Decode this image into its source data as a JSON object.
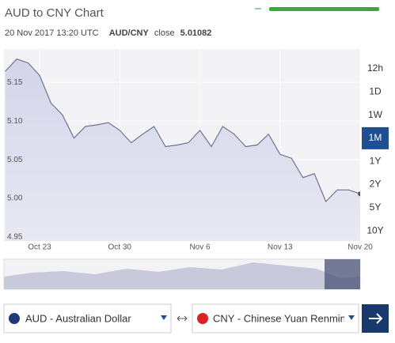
{
  "header": {
    "title": "AUD to CNY Chart",
    "timestamp": "20 Nov 2017 13:20 UTC",
    "pair": "AUD/CNY",
    "close_label": "close",
    "close_value": "5.01082"
  },
  "chart_data": {
    "type": "area",
    "color": "#6f7393",
    "categories": [
      null,
      null,
      null,
      "Oct 23",
      null,
      null,
      null,
      null,
      null,
      null,
      "Oct 30",
      null,
      null,
      null,
      null,
      null,
      null,
      "Nov 6",
      null,
      null,
      null,
      null,
      null,
      null,
      "Nov 13",
      null,
      null,
      null,
      null,
      null,
      null,
      "Nov 20"
    ],
    "values": [
      5.164,
      5.18,
      5.175,
      5.159,
      5.123,
      5.108,
      5.078,
      5.093,
      5.095,
      5.098,
      5.088,
      5.072,
      5.083,
      5.093,
      5.067,
      5.069,
      5.072,
      5.088,
      5.067,
      5.093,
      5.083,
      5.067,
      5.069,
      5.083,
      5.057,
      5.052,
      5.027,
      5.032,
      4.996,
      5.011,
      5.011,
      5.006
    ],
    "ylim": [
      4.945,
      5.193
    ],
    "yticks": [
      4.95,
      {
        "value": 5,
        "label": "5.00"
      },
      5.05,
      {
        "value": 5.1,
        "label": "5.10"
      },
      5.15
    ],
    "grid": true
  },
  "ranges": {
    "options": [
      "12h",
      "1D",
      "1W",
      "1M",
      "1Y",
      "2Y",
      "5Y",
      "10Y"
    ],
    "active": 3
  },
  "converter": {
    "from": "AUD - Australian Dollar",
    "to": "CNY - Chinese Yuan Renmin"
  }
}
